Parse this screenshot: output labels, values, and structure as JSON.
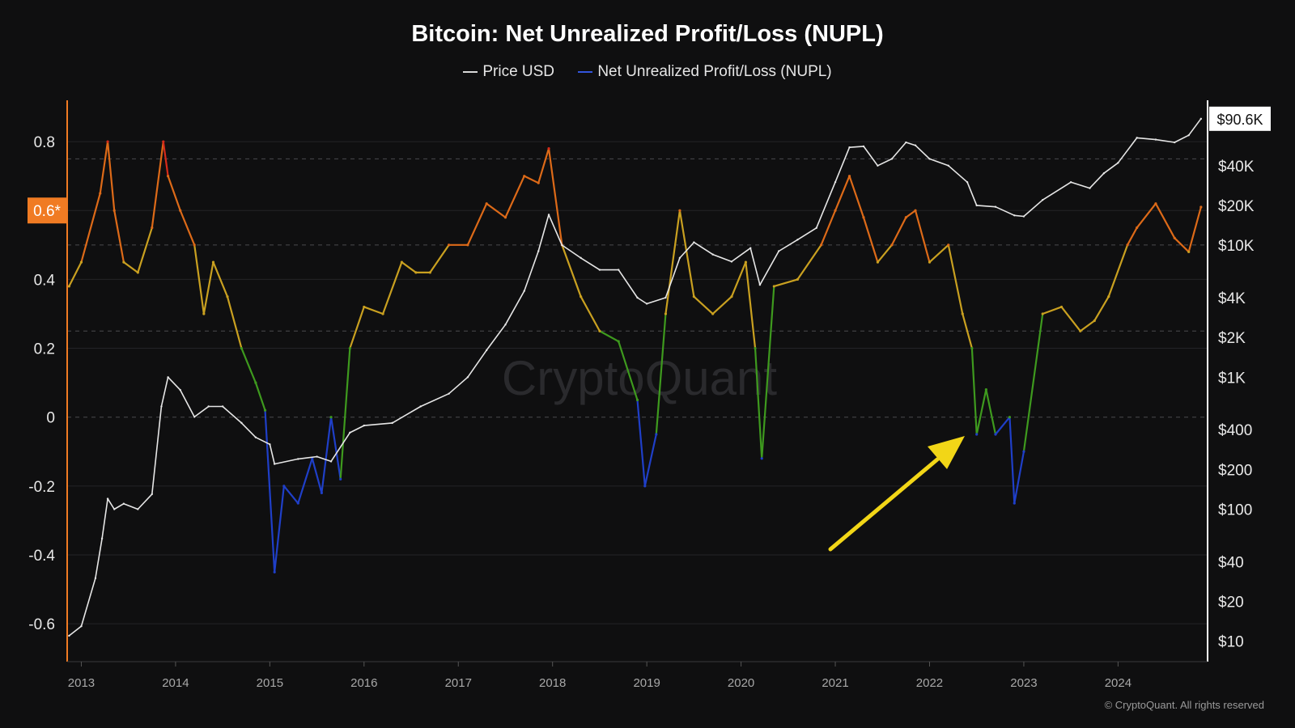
{
  "chart_data": {
    "type": "line",
    "title": "Bitcoin: Net Unrealized Profit/Loss (NUPL)",
    "watermark": "CryptoQuant",
    "copyright": "© CryptoQuant. All rights reserved",
    "legend": [
      {
        "name": "Price USD",
        "color": "#d9d9d9"
      },
      {
        "name": "Net Unrealized Profit/Loss (NUPL)",
        "color": "#3355dd"
      }
    ],
    "x_ticks": [
      "2013",
      "2014",
      "2015",
      "2016",
      "2017",
      "2018",
      "2019",
      "2020",
      "2021",
      "2022",
      "2023",
      "2024"
    ],
    "y_left": {
      "ticks": [
        0.8,
        0.4,
        0.2,
        0,
        -0.2,
        -0.4,
        -0.6
      ],
      "tick_labels": [
        "0.8",
        "0.4",
        "0.2",
        "0",
        "-0.2",
        "-0.4",
        "-0.6"
      ],
      "range": [
        -0.71,
        0.92
      ],
      "highlight_label": "0.6*",
      "highlight_value": 0.6,
      "axis_color": "#f07b23"
    },
    "y_right": {
      "scale": "log",
      "ticks": [
        40000,
        20000,
        10000,
        4000,
        2000,
        1000,
        400,
        200,
        100,
        40,
        20,
        10
      ],
      "tick_labels": [
        "$40K",
        "$20K",
        "$10K",
        "$4K",
        "$2K",
        "$1K",
        "$400",
        "$200",
        "$100",
        "$40",
        "$20",
        "$10"
      ],
      "current_label": "$90.6K",
      "current_value": 90600,
      "range": [
        7,
        125000
      ]
    },
    "zone_lines": [
      0.75,
      0.5,
      0.25,
      0
    ],
    "zone_colors": {
      "capitulation": "#1f3fc8",
      "hope_fear": "#3e9a1e",
      "optimism_anxiety": "#c9a020",
      "belief_denial": "#dd6a18",
      "euphoria_greed": "#d62a1a"
    },
    "nupl_series": {
      "name": "Net Unrealized Profit/Loss (NUPL)",
      "x": [
        2012.87,
        2013.0,
        2013.2,
        2013.28,
        2013.35,
        2013.45,
        2013.6,
        2013.75,
        2013.87,
        2013.92,
        2014.05,
        2014.2,
        2014.3,
        2014.4,
        2014.55,
        2014.7,
        2014.85,
        2014.95,
        2015.05,
        2015.15,
        2015.3,
        2015.45,
        2015.55,
        2015.65,
        2015.75,
        2015.85,
        2016.0,
        2016.2,
        2016.4,
        2016.55,
        2016.7,
        2016.9,
        2017.1,
        2017.3,
        2017.5,
        2017.7,
        2017.85,
        2017.96,
        2018.1,
        2018.3,
        2018.5,
        2018.7,
        2018.9,
        2018.98,
        2019.1,
        2019.2,
        2019.35,
        2019.5,
        2019.7,
        2019.9,
        2020.05,
        2020.15,
        2020.22,
        2020.35,
        2020.6,
        2020.85,
        2021.0,
        2021.15,
        2021.3,
        2021.45,
        2021.6,
        2021.75,
        2021.85,
        2022.0,
        2022.2,
        2022.35,
        2022.45,
        2022.5,
        2022.6,
        2022.7,
        2022.85,
        2022.9,
        2023.0,
        2023.2,
        2023.4,
        2023.6,
        2023.75,
        2023.9,
        2024.1,
        2024.2,
        2024.4,
        2024.6,
        2024.75,
        2024.88
      ],
      "y": [
        0.38,
        0.45,
        0.65,
        0.8,
        0.6,
        0.45,
        0.42,
        0.55,
        0.8,
        0.7,
        0.6,
        0.5,
        0.3,
        0.45,
        0.35,
        0.2,
        0.1,
        0.02,
        -0.45,
        -0.2,
        -0.25,
        -0.12,
        -0.22,
        0.0,
        -0.18,
        0.2,
        0.32,
        0.3,
        0.45,
        0.42,
        0.42,
        0.5,
        0.5,
        0.62,
        0.58,
        0.7,
        0.68,
        0.78,
        0.5,
        0.35,
        0.25,
        0.22,
        0.05,
        -0.2,
        -0.05,
        0.3,
        0.6,
        0.35,
        0.3,
        0.35,
        0.45,
        0.2,
        -0.12,
        0.38,
        0.4,
        0.5,
        0.6,
        0.7,
        0.58,
        0.45,
        0.5,
        0.58,
        0.6,
        0.45,
        0.5,
        0.3,
        0.2,
        -0.05,
        0.08,
        -0.05,
        0.0,
        -0.25,
        -0.1,
        0.3,
        0.32,
        0.25,
        0.28,
        0.35,
        0.5,
        0.55,
        0.62,
        0.52,
        0.48,
        0.61
      ]
    },
    "price_series": {
      "name": "Price USD",
      "x": [
        2012.87,
        2013.0,
        2013.15,
        2013.22,
        2013.28,
        2013.35,
        2013.45,
        2013.6,
        2013.75,
        2013.85,
        2013.92,
        2014.05,
        2014.2,
        2014.35,
        2014.5,
        2014.7,
        2014.85,
        2015.0,
        2015.05,
        2015.3,
        2015.5,
        2015.65,
        2015.85,
        2016.0,
        2016.3,
        2016.6,
        2016.9,
        2017.1,
        2017.3,
        2017.5,
        2017.7,
        2017.85,
        2017.96,
        2018.1,
        2018.3,
        2018.5,
        2018.7,
        2018.9,
        2019.0,
        2019.2,
        2019.35,
        2019.5,
        2019.7,
        2019.9,
        2020.1,
        2020.2,
        2020.4,
        2020.6,
        2020.8,
        2021.0,
        2021.15,
        2021.3,
        2021.45,
        2021.6,
        2021.75,
        2021.85,
        2022.0,
        2022.2,
        2022.4,
        2022.5,
        2022.7,
        2022.9,
        2023.0,
        2023.2,
        2023.5,
        2023.7,
        2023.85,
        2024.0,
        2024.2,
        2024.4,
        2024.6,
        2024.75,
        2024.88
      ],
      "y": [
        11,
        13,
        30,
        60,
        120,
        100,
        110,
        100,
        130,
        600,
        1000,
        800,
        500,
        600,
        600,
        450,
        350,
        310,
        220,
        240,
        250,
        230,
        380,
        430,
        450,
        600,
        750,
        1000,
        1600,
        2500,
        4500,
        9000,
        17000,
        10000,
        8000,
        6500,
        6500,
        4000,
        3600,
        4000,
        8000,
        10500,
        8500,
        7500,
        9500,
        5000,
        9000,
        11000,
        13500,
        30000,
        55000,
        56000,
        40000,
        45000,
        60000,
        57000,
        45000,
        40000,
        30000,
        20000,
        19500,
        16800,
        16500,
        22000,
        30000,
        27000,
        35000,
        42000,
        65000,
        63000,
        60000,
        68000,
        90600
      ]
    }
  }
}
